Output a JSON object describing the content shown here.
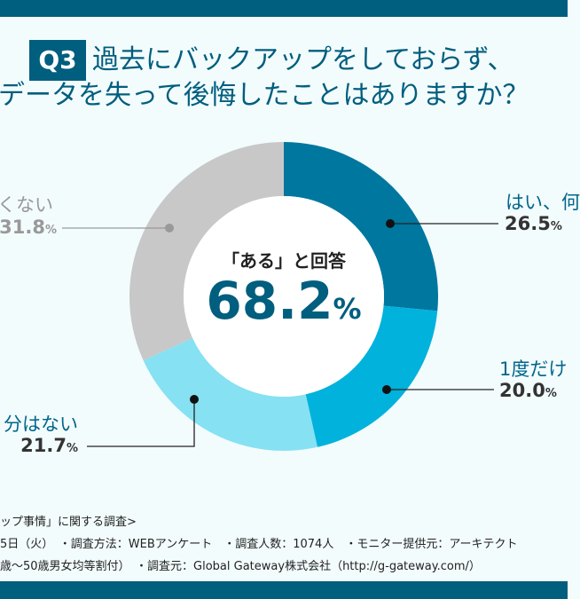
{
  "header": {
    "badge": "Q3",
    "line1": "過去にバックアップをしておらず、",
    "line2": "データを失って後悔したことはありますか？"
  },
  "chart_data": {
    "type": "pie",
    "donut": true,
    "start": "top, clockwise",
    "center_label": "「ある」と回答",
    "center_value": "68.2",
    "center_unit": "%",
    "slices": [
      {
        "label": "はい、何",
        "value": 26.5,
        "color": "#00779f"
      },
      {
        "label": "1度だけ",
        "value": 20.0,
        "color": "#00b2dc"
      },
      {
        "label": "分はない",
        "value": 21.7,
        "color": "#86e1f3"
      },
      {
        "label": "くない",
        "value": 31.8,
        "color": "#c8c8c8"
      }
    ],
    "unit": "%"
  },
  "footer": {
    "line1": "ップ事情」に関する調査>",
    "line2": "5日（火）　・調査方法：WEBアンケート　・調査人数：1074人　・モニター提供元：アーキテクト",
    "line3": "歳～50歳男女均等割付）　・調査元：Global Gateway株式会社（http://g-gateway.com/）"
  },
  "colors": {
    "brand": "#005e7e",
    "background": "#f3fcfd"
  }
}
